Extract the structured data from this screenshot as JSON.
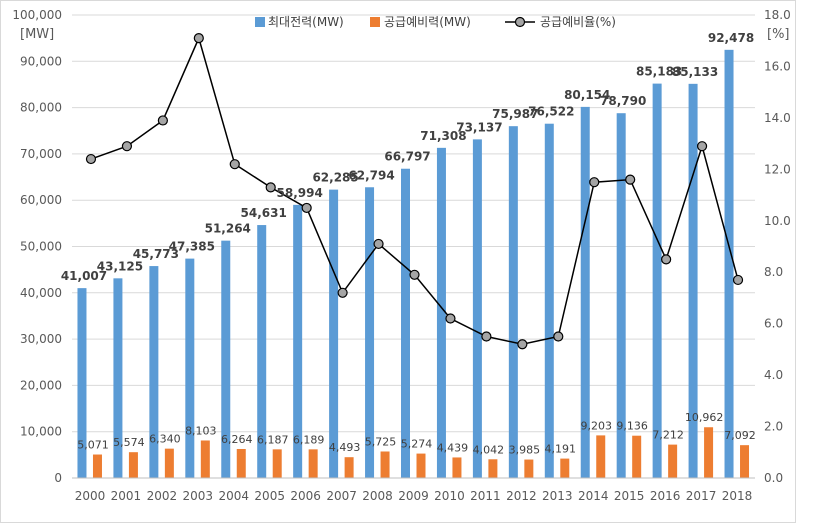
{
  "chart_data": {
    "type": "bar",
    "categories": [
      "2000",
      "2001",
      "2002",
      "2003",
      "2004",
      "2005",
      "2006",
      "2007",
      "2008",
      "2009",
      "2010",
      "2011",
      "2012",
      "2013",
      "2014",
      "2015",
      "2016",
      "2017",
      "2018"
    ],
    "y_left": {
      "unit": "[MW]",
      "ylim": [
        0,
        100000
      ],
      "ticks": [
        "0",
        "10,000",
        "20,000",
        "30,000",
        "40,000",
        "50,000",
        "60,000",
        "70,000",
        "80,000",
        "90,000",
        "100,000"
      ]
    },
    "y_right": {
      "unit": "[%]",
      "ylim": [
        0,
        18
      ],
      "ticks": [
        "0.0",
        "2.0",
        "4.0",
        "6.0",
        "8.0",
        "10.0",
        "12.0",
        "14.0",
        "16.0",
        "18.0"
      ]
    },
    "series": [
      {
        "name": "최대전력(MW)",
        "type": "bar",
        "axis": "left",
        "color": "#5B9BD5",
        "values": [
          41007,
          43125,
          45773,
          47385,
          51264,
          54631,
          58994,
          62285,
          62794,
          66797,
          71308,
          73137,
          75987,
          76522,
          80154,
          78790,
          85183,
          85133,
          92478
        ],
        "labels": [
          "41,007",
          "43,125",
          "45,773",
          "47,385",
          "51,264",
          "54,631",
          "58,994",
          "62,285",
          "62,794",
          "66,797",
          "71,308",
          "73,137",
          "75,987",
          "76,522",
          "80,154",
          "78,790",
          "85,183",
          "85,133",
          "92,478"
        ]
      },
      {
        "name": "공급예비력(MW)",
        "type": "bar",
        "axis": "left",
        "color": "#ED7D31",
        "values": [
          5071,
          5574,
          6340,
          8103,
          6264,
          6187,
          6189,
          4493,
          5725,
          5274,
          4439,
          4042,
          3985,
          4191,
          9203,
          9136,
          7212,
          10962,
          7092
        ],
        "labels": [
          "5,071",
          "5,574",
          "6,340",
          "8,103",
          "6,264",
          "6,187",
          "6,189",
          "4,493",
          "5,725",
          "5,274",
          "4,439",
          "4,042",
          "3,985",
          "4,191",
          "9,203",
          "9,136",
          "7,212",
          "10,962",
          "7,092"
        ]
      },
      {
        "name": "공급예비율(%)",
        "type": "line",
        "axis": "right",
        "color": "#000000",
        "marker_color": "#A5A5A5",
        "values": [
          12.4,
          12.9,
          13.9,
          17.1,
          12.2,
          11.3,
          10.5,
          7.2,
          9.1,
          7.9,
          6.2,
          5.5,
          5.2,
          5.5,
          11.5,
          11.6,
          8.5,
          12.9,
          7.7
        ]
      }
    ],
    "grid": true,
    "legend_position": "top"
  }
}
